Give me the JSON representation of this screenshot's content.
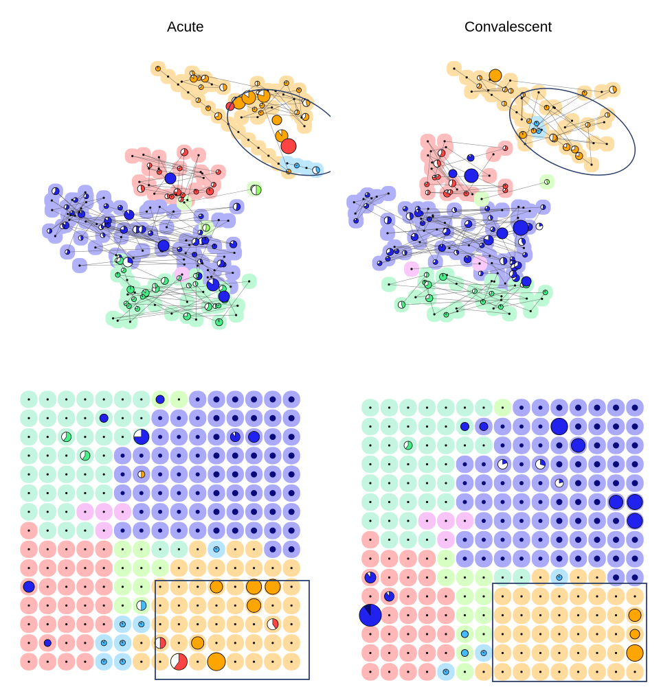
{
  "titles": {
    "left": "Acute",
    "right": "Convalescent"
  },
  "colors": {
    "orange": "#ffa500",
    "red": "#ff4444",
    "blue": "#2222ee",
    "darkblue": "#0a0a7a",
    "green": "#44ee88",
    "mint": "#66e6b0",
    "lightgreen": "#99ff66",
    "pink": "#ee66ee",
    "cyan": "#44bbff",
    "outline": "#2b3f6b"
  },
  "highlight_shapes": {
    "network_highlight": "ellipse",
    "som_highlight": "rectangle"
  }
}
